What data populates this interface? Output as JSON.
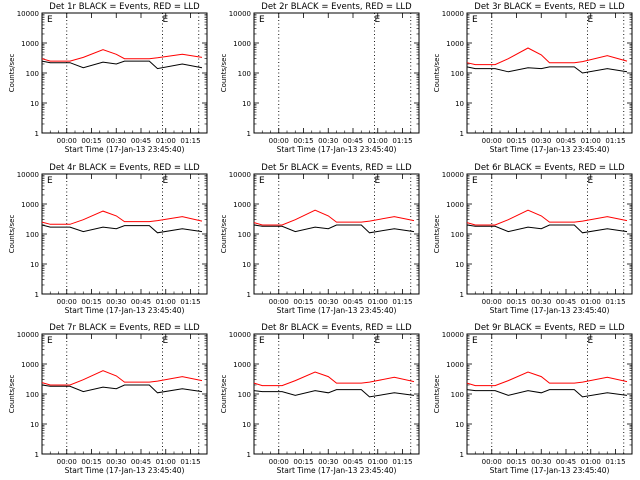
{
  "chart_data": {
    "type": "line",
    "layout": "3x3 grid",
    "y_scale": "log",
    "grid": false,
    "x_tick_labels": [
      "00:00",
      "00:15",
      "00:30",
      "00:45",
      "01:00",
      "01:15"
    ],
    "xlabel": "Start Time (17-Jan-13 23:45:40)",
    "ylabel": "Counts/sec",
    "y_tick_labels": [
      "1",
      "10",
      "100",
      "1000",
      "10000"
    ],
    "ylim": [
      1,
      10000
    ],
    "xlim_minutes": [
      -15,
      85
    ],
    "event_markers": [
      "E",
      "E"
    ],
    "marker_minutes": [
      -12,
      58
    ],
    "dotted_lines_minutes": [
      0,
      58,
      80
    ],
    "series_colors": {
      "events": "#000000",
      "lld": "#ff0000"
    },
    "panels": [
      {
        "title": "Det 1r BLACK = Events, RED = LLD",
        "series": [
          {
            "values": [
              {
                "x": -15,
                "y": 300
              },
              {
                "x": -10,
                "y": 250
              },
              {
                "x": 2,
                "y": 250
              },
              {
                "x": 10,
                "y": 330
              },
              {
                "x": 22,
                "y": 600
              },
              {
                "x": 30,
                "y": 420
              },
              {
                "x": 35,
                "y": 300
              },
              {
                "x": 50,
                "y": 300
              },
              {
                "x": 55,
                "y": 320
              },
              {
                "x": 70,
                "y": 420
              },
              {
                "x": 82,
                "y": 330
              }
            ]
          },
          {
            "values": [
              {
                "x": -15,
                "y": 250
              },
              {
                "x": -10,
                "y": 220
              },
              {
                "x": 2,
                "y": 220
              },
              {
                "x": 10,
                "y": 150
              },
              {
                "x": 22,
                "y": 230
              },
              {
                "x": 30,
                "y": 200
              },
              {
                "x": 35,
                "y": 250
              },
              {
                "x": 50,
                "y": 250
              },
              {
                "x": 55,
                "y": 140
              },
              {
                "x": 70,
                "y": 200
              },
              {
                "x": 82,
                "y": 150
              }
            ]
          }
        ]
      },
      {
        "title": "Det 2r BLACK = Events, RED = LLD",
        "series": []
      },
      {
        "title": "Det 3r BLACK = Events, RED = LLD",
        "series": [
          {
            "values": [
              {
                "x": -15,
                "y": 220
              },
              {
                "x": -10,
                "y": 190
              },
              {
                "x": 2,
                "y": 190
              },
              {
                "x": 10,
                "y": 300
              },
              {
                "x": 22,
                "y": 680
              },
              {
                "x": 30,
                "y": 400
              },
              {
                "x": 35,
                "y": 220
              },
              {
                "x": 50,
                "y": 220
              },
              {
                "x": 55,
                "y": 240
              },
              {
                "x": 70,
                "y": 380
              },
              {
                "x": 82,
                "y": 250
              }
            ]
          },
          {
            "values": [
              {
                "x": -15,
                "y": 160
              },
              {
                "x": -10,
                "y": 140
              },
              {
                "x": 2,
                "y": 140
              },
              {
                "x": 10,
                "y": 110
              },
              {
                "x": 22,
                "y": 150
              },
              {
                "x": 30,
                "y": 140
              },
              {
                "x": 35,
                "y": 160
              },
              {
                "x": 50,
                "y": 160
              },
              {
                "x": 55,
                "y": 100
              },
              {
                "x": 70,
                "y": 140
              },
              {
                "x": 82,
                "y": 110
              }
            ]
          }
        ]
      },
      {
        "title": "Det 4r BLACK = Events, RED = LLD",
        "series": [
          {
            "values": [
              {
                "x": -15,
                "y": 250
              },
              {
                "x": -10,
                "y": 210
              },
              {
                "x": 2,
                "y": 210
              },
              {
                "x": 10,
                "y": 300
              },
              {
                "x": 22,
                "y": 580
              },
              {
                "x": 30,
                "y": 400
              },
              {
                "x": 35,
                "y": 260
              },
              {
                "x": 50,
                "y": 260
              },
              {
                "x": 55,
                "y": 280
              },
              {
                "x": 70,
                "y": 380
              },
              {
                "x": 82,
                "y": 270
              }
            ]
          },
          {
            "values": [
              {
                "x": -15,
                "y": 200
              },
              {
                "x": -10,
                "y": 170
              },
              {
                "x": 2,
                "y": 170
              },
              {
                "x": 10,
                "y": 120
              },
              {
                "x": 22,
                "y": 170
              },
              {
                "x": 30,
                "y": 150
              },
              {
                "x": 35,
                "y": 190
              },
              {
                "x": 50,
                "y": 190
              },
              {
                "x": 55,
                "y": 110
              },
              {
                "x": 70,
                "y": 150
              },
              {
                "x": 82,
                "y": 120
              }
            ]
          }
        ]
      },
      {
        "title": "Det 5r BLACK = Events, RED = LLD",
        "series": [
          {
            "values": [
              {
                "x": -15,
                "y": 240
              },
              {
                "x": -10,
                "y": 200
              },
              {
                "x": 2,
                "y": 200
              },
              {
                "x": 10,
                "y": 300
              },
              {
                "x": 22,
                "y": 620
              },
              {
                "x": 30,
                "y": 400
              },
              {
                "x": 35,
                "y": 250
              },
              {
                "x": 50,
                "y": 250
              },
              {
                "x": 55,
                "y": 270
              },
              {
                "x": 70,
                "y": 380
              },
              {
                "x": 82,
                "y": 280
              }
            ]
          },
          {
            "values": [
              {
                "x": -15,
                "y": 200
              },
              {
                "x": -10,
                "y": 180
              },
              {
                "x": 2,
                "y": 180
              },
              {
                "x": 10,
                "y": 120
              },
              {
                "x": 22,
                "y": 170
              },
              {
                "x": 30,
                "y": 150
              },
              {
                "x": 35,
                "y": 200
              },
              {
                "x": 50,
                "y": 200
              },
              {
                "x": 55,
                "y": 110
              },
              {
                "x": 70,
                "y": 150
              },
              {
                "x": 82,
                "y": 120
              }
            ]
          }
        ]
      },
      {
        "title": "Det 6r BLACK = Events, RED = LLD",
        "series": [
          {
            "values": [
              {
                "x": -15,
                "y": 240
              },
              {
                "x": -10,
                "y": 200
              },
              {
                "x": 2,
                "y": 200
              },
              {
                "x": 10,
                "y": 300
              },
              {
                "x": 22,
                "y": 620
              },
              {
                "x": 30,
                "y": 400
              },
              {
                "x": 35,
                "y": 250
              },
              {
                "x": 50,
                "y": 250
              },
              {
                "x": 55,
                "y": 270
              },
              {
                "x": 70,
                "y": 380
              },
              {
                "x": 82,
                "y": 280
              }
            ]
          },
          {
            "values": [
              {
                "x": -15,
                "y": 200
              },
              {
                "x": -10,
                "y": 180
              },
              {
                "x": 2,
                "y": 180
              },
              {
                "x": 10,
                "y": 120
              },
              {
                "x": 22,
                "y": 170
              },
              {
                "x": 30,
                "y": 150
              },
              {
                "x": 35,
                "y": 200
              },
              {
                "x": 50,
                "y": 200
              },
              {
                "x": 55,
                "y": 110
              },
              {
                "x": 70,
                "y": 150
              },
              {
                "x": 82,
                "y": 120
              }
            ]
          }
        ]
      },
      {
        "title": "Det 7r BLACK = Events, RED = LLD",
        "series": [
          {
            "values": [
              {
                "x": -15,
                "y": 240
              },
              {
                "x": -10,
                "y": 200
              },
              {
                "x": 2,
                "y": 200
              },
              {
                "x": 10,
                "y": 300
              },
              {
                "x": 22,
                "y": 600
              },
              {
                "x": 30,
                "y": 400
              },
              {
                "x": 35,
                "y": 250
              },
              {
                "x": 50,
                "y": 250
              },
              {
                "x": 55,
                "y": 270
              },
              {
                "x": 70,
                "y": 380
              },
              {
                "x": 82,
                "y": 280
              }
            ]
          },
          {
            "values": [
              {
                "x": -15,
                "y": 200
              },
              {
                "x": -10,
                "y": 180
              },
              {
                "x": 2,
                "y": 180
              },
              {
                "x": 10,
                "y": 120
              },
              {
                "x": 22,
                "y": 170
              },
              {
                "x": 30,
                "y": 150
              },
              {
                "x": 35,
                "y": 200
              },
              {
                "x": 50,
                "y": 200
              },
              {
                "x": 55,
                "y": 110
              },
              {
                "x": 70,
                "y": 150
              },
              {
                "x": 82,
                "y": 120
              }
            ]
          }
        ]
      },
      {
        "title": "Det 8r BLACK = Events, RED = LLD",
        "series": [
          {
            "values": [
              {
                "x": -15,
                "y": 230
              },
              {
                "x": -10,
                "y": 190
              },
              {
                "x": 2,
                "y": 190
              },
              {
                "x": 10,
                "y": 280
              },
              {
                "x": 22,
                "y": 540
              },
              {
                "x": 30,
                "y": 380
              },
              {
                "x": 35,
                "y": 230
              },
              {
                "x": 50,
                "y": 230
              },
              {
                "x": 55,
                "y": 250
              },
              {
                "x": 70,
                "y": 360
              },
              {
                "x": 82,
                "y": 260
              }
            ]
          },
          {
            "values": [
              {
                "x": -15,
                "y": 130
              },
              {
                "x": -10,
                "y": 120
              },
              {
                "x": 2,
                "y": 120
              },
              {
                "x": 10,
                "y": 90
              },
              {
                "x": 22,
                "y": 130
              },
              {
                "x": 30,
                "y": 110
              },
              {
                "x": 35,
                "y": 140
              },
              {
                "x": 50,
                "y": 140
              },
              {
                "x": 55,
                "y": 80
              },
              {
                "x": 70,
                "y": 110
              },
              {
                "x": 82,
                "y": 90
              }
            ]
          }
        ]
      },
      {
        "title": "Det 9r BLACK = Events, RED = LLD",
        "series": [
          {
            "values": [
              {
                "x": -15,
                "y": 230
              },
              {
                "x": -10,
                "y": 190
              },
              {
                "x": 2,
                "y": 190
              },
              {
                "x": 10,
                "y": 280
              },
              {
                "x": 22,
                "y": 540
              },
              {
                "x": 30,
                "y": 380
              },
              {
                "x": 35,
                "y": 230
              },
              {
                "x": 50,
                "y": 230
              },
              {
                "x": 55,
                "y": 250
              },
              {
                "x": 70,
                "y": 360
              },
              {
                "x": 82,
                "y": 260
              }
            ]
          },
          {
            "values": [
              {
                "x": -15,
                "y": 140
              },
              {
                "x": -10,
                "y": 130
              },
              {
                "x": 2,
                "y": 130
              },
              {
                "x": 10,
                "y": 90
              },
              {
                "x": 22,
                "y": 130
              },
              {
                "x": 30,
                "y": 110
              },
              {
                "x": 35,
                "y": 140
              },
              {
                "x": 50,
                "y": 140
              },
              {
                "x": 55,
                "y": 80
              },
              {
                "x": 70,
                "y": 110
              },
              {
                "x": 82,
                "y": 90
              }
            ]
          }
        ]
      }
    ]
  }
}
